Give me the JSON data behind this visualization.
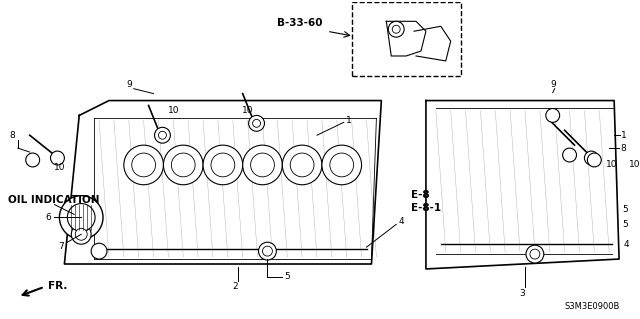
{
  "bg_color": "#ffffff",
  "diagram_code": "S3M3E0900B",
  "labels": {
    "oil_indication": "OIL INDICATION",
    "b_ref": "B-33-60",
    "e_ref1": "E-8",
    "e_ref2": "E-8-1",
    "fr": "FR."
  }
}
